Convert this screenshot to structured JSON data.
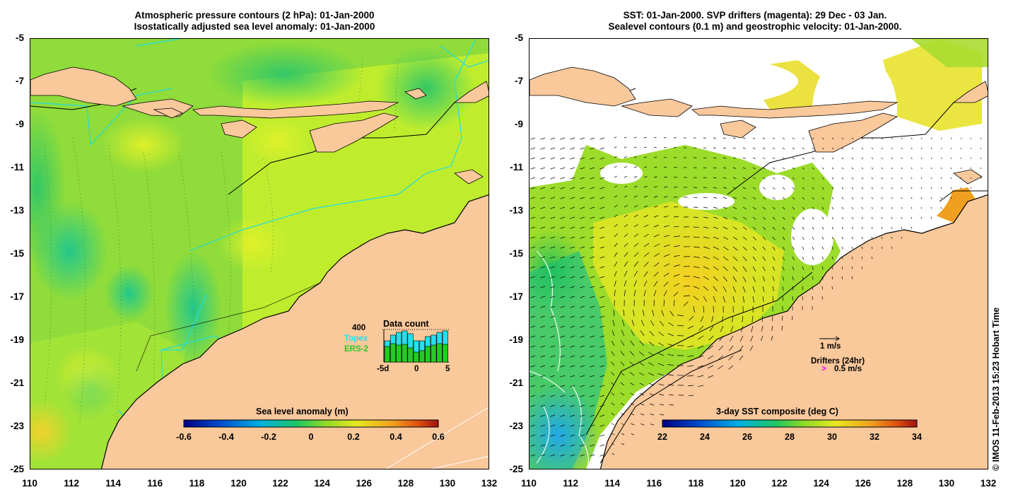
{
  "left_panel": {
    "title_line1": "Atmospheric pressure contours (2 hPa): 01-Jan-2000",
    "title_line2": "Isostatically adjusted sea level anomaly: 01-Jan-2000",
    "colorbar_label": "Sea level anomaly (m)",
    "colorbar_ticks": [
      "-0.6",
      "-0.4",
      "-0.2",
      "0",
      "0.2",
      "0.4",
      "0.6"
    ],
    "inset": {
      "title": "Data count",
      "max_label": "400",
      "legend_topex": "Topex",
      "legend_ers2": "ERS-2",
      "x_ticks": [
        "-5d",
        "0",
        "5"
      ],
      "topex_color": "#22e0ee",
      "ers2_color": "#22cc22"
    }
  },
  "right_panel": {
    "title_line1": "SST: 01-Jan-2000. SVP drifters (magenta): 29 Dec - 03 Jan.",
    "title_line2": "Sealevel contours (0.1 m) and geostrophic velocity: 01-Jan-2000.",
    "colorbar_label": "3-day SST composite (deg C)",
    "colorbar_ticks": [
      "22",
      "24",
      "26",
      "28",
      "30",
      "32",
      "34"
    ],
    "velocity_scale_label": "1 m/s",
    "drifters_label": "Drifters (24hr)",
    "drifters_scale_symbol": ">",
    "drifters_scale_label": "0.5 m/s",
    "drifter_color": "#ff00ff"
  },
  "axes": {
    "x_ticks": [
      "110",
      "112",
      "114",
      "116",
      "118",
      "120",
      "122",
      "124",
      "126",
      "128",
      "130",
      "132"
    ],
    "y_ticks": [
      "-5",
      "-7",
      "-9",
      "-11",
      "-13",
      "-15",
      "-17",
      "-19",
      "-21",
      "-23",
      "-25"
    ],
    "lon_range": [
      110,
      132
    ],
    "lat_range": [
      -25,
      -5
    ]
  },
  "credit": "© IMOS 11-Feb-2013 15:23 Hobart Time",
  "colors": {
    "land": "#f9c89b",
    "no_data": "#ffffff",
    "contour": "#000000",
    "bathymetry": "#22dddd"
  }
}
